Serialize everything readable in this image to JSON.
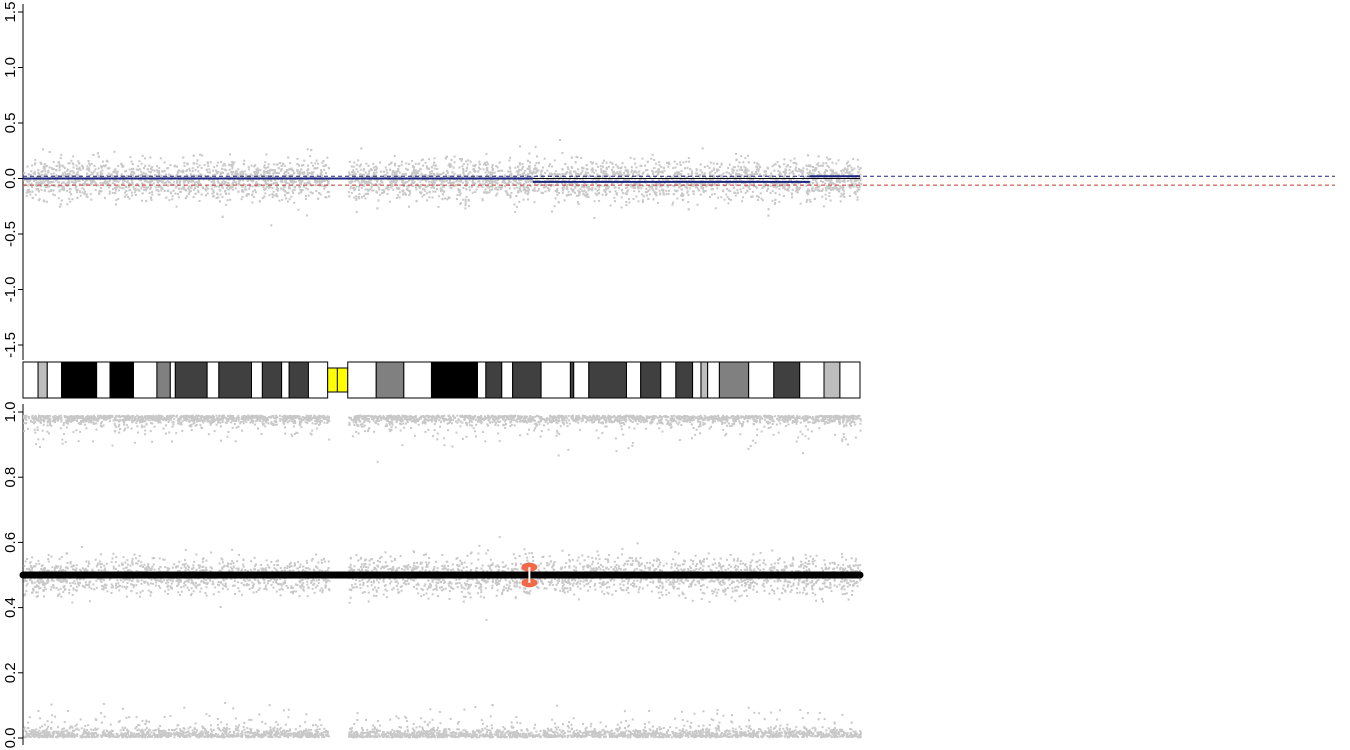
{
  "chart_data": [
    {
      "type": "scatter",
      "title": "",
      "xlabel": "",
      "ylabel": "",
      "ylim": [
        -1.5,
        1.5
      ],
      "yticks": [
        1.5,
        1.0,
        0.5,
        0.0,
        -0.5,
        -1.0,
        -1.5
      ],
      "ytick_labels": [
        "1.5",
        "1.0",
        "0.5",
        "0.0",
        "-0.5",
        "-1.0",
        "-1.5"
      ],
      "xlim": [
        0,
        1
      ],
      "grid": false,
      "points_description": "dense grey log-ratio cloud centered near 0.0 with gap at centromere",
      "scatter_color": "#c8c8c8",
      "baseline": 0.0,
      "segment_color": "#1a237e",
      "segments": [
        {
          "x": [
            0.0,
            0.609
          ],
          "y": 0.0
        },
        {
          "x": [
            0.609,
            0.94
          ],
          "y": -0.03
        },
        {
          "x": [
            0.94,
            1.0
          ],
          "y": 0.02
        }
      ],
      "reference_lines": [
        {
          "y": 0.02,
          "color": "#1a237e",
          "style": "dashed"
        },
        {
          "y": -0.06,
          "color": "#c0392b",
          "style": "dashed"
        }
      ]
    },
    {
      "type": "ideogram",
      "centromere_color": "#ffff00",
      "bands": [
        {
          "start": 0.0,
          "end": 0.018,
          "shade": "#ffffff"
        },
        {
          "start": 0.018,
          "end": 0.029,
          "shade": "#bdbdbd"
        },
        {
          "start": 0.029,
          "end": 0.046,
          "shade": "#ffffff"
        },
        {
          "start": 0.046,
          "end": 0.088,
          "shade": "#000000"
        },
        {
          "start": 0.088,
          "end": 0.104,
          "shade": "#ffffff"
        },
        {
          "start": 0.104,
          "end": 0.132,
          "shade": "#000000"
        },
        {
          "start": 0.132,
          "end": 0.16,
          "shade": "#ffffff"
        },
        {
          "start": 0.16,
          "end": 0.176,
          "shade": "#808080"
        },
        {
          "start": 0.176,
          "end": 0.182,
          "shade": "#ffffff"
        },
        {
          "start": 0.182,
          "end": 0.22,
          "shade": "#404040"
        },
        {
          "start": 0.22,
          "end": 0.234,
          "shade": "#ffffff"
        },
        {
          "start": 0.234,
          "end": 0.273,
          "shade": "#404040"
        },
        {
          "start": 0.273,
          "end": 0.286,
          "shade": "#ffffff"
        },
        {
          "start": 0.286,
          "end": 0.309,
          "shade": "#404040"
        },
        {
          "start": 0.309,
          "end": 0.318,
          "shade": "#ffffff"
        },
        {
          "start": 0.318,
          "end": 0.341,
          "shade": "#404040"
        },
        {
          "start": 0.341,
          "end": 0.364,
          "shade": "#ffffff"
        },
        {
          "start": 0.364,
          "end": 0.388,
          "shade": "#ffff00"
        },
        {
          "start": 0.388,
          "end": 0.422,
          "shade": "#ffffff"
        },
        {
          "start": 0.422,
          "end": 0.455,
          "shade": "#808080"
        },
        {
          "start": 0.455,
          "end": 0.488,
          "shade": "#ffffff"
        },
        {
          "start": 0.488,
          "end": 0.543,
          "shade": "#000000"
        },
        {
          "start": 0.543,
          "end": 0.553,
          "shade": "#ffffff"
        },
        {
          "start": 0.553,
          "end": 0.572,
          "shade": "#404040"
        },
        {
          "start": 0.572,
          "end": 0.585,
          "shade": "#ffffff"
        },
        {
          "start": 0.585,
          "end": 0.619,
          "shade": "#404040"
        },
        {
          "start": 0.619,
          "end": 0.654,
          "shade": "#ffffff"
        },
        {
          "start": 0.654,
          "end": 0.658,
          "shade": "#404040"
        },
        {
          "start": 0.658,
          "end": 0.676,
          "shade": "#ffffff"
        },
        {
          "start": 0.676,
          "end": 0.721,
          "shade": "#404040"
        },
        {
          "start": 0.721,
          "end": 0.738,
          "shade": "#ffffff"
        },
        {
          "start": 0.738,
          "end": 0.762,
          "shade": "#404040"
        },
        {
          "start": 0.762,
          "end": 0.78,
          "shade": "#ffffff"
        },
        {
          "start": 0.78,
          "end": 0.8,
          "shade": "#404040"
        },
        {
          "start": 0.8,
          "end": 0.81,
          "shade": "#ffffff"
        },
        {
          "start": 0.81,
          "end": 0.818,
          "shade": "#bdbdbd"
        },
        {
          "start": 0.818,
          "end": 0.832,
          "shade": "#ffffff"
        },
        {
          "start": 0.832,
          "end": 0.867,
          "shade": "#808080"
        },
        {
          "start": 0.867,
          "end": 0.897,
          "shade": "#ffffff"
        },
        {
          "start": 0.897,
          "end": 0.928,
          "shade": "#404040"
        },
        {
          "start": 0.928,
          "end": 0.957,
          "shade": "#ffffff"
        },
        {
          "start": 0.957,
          "end": 0.976,
          "shade": "#bdbdbd"
        },
        {
          "start": 0.976,
          "end": 1.0,
          "shade": "#ffffff"
        }
      ]
    },
    {
      "type": "scatter",
      "title": "",
      "xlabel": "",
      "ylabel": "",
      "ylim": [
        0.0,
        1.0
      ],
      "yticks": [
        1.0,
        0.8,
        0.6,
        0.4,
        0.2,
        0.0
      ],
      "ytick_labels": [
        "1.0",
        "0.8",
        "0.6",
        "0.4",
        "0.2",
        "0.0"
      ],
      "xlim": [
        0,
        1
      ],
      "grid": false,
      "points_description": "grey B-allele frequency bands near 0.0, 0.5 and 1.0",
      "scatter_color": "#c8c8c8",
      "segment_color": "#000000",
      "segments": [
        {
          "x": [
            0.0,
            1.0
          ],
          "y": 0.5
        }
      ],
      "highlight": {
        "x": 0.605,
        "y_upper": 0.524,
        "y_lower": 0.476,
        "color": "#f06a4a"
      }
    }
  ]
}
